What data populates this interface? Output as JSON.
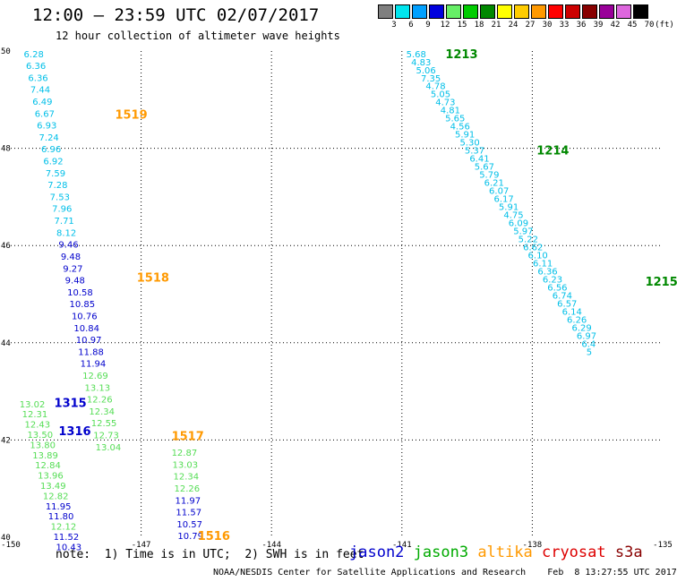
{
  "header": {
    "title": "12:00 – 23:59 UTC 02/07/2017",
    "subtitle": "12 hour collection of altimeter wave heights"
  },
  "legend": {
    "unit": "(ft)",
    "bins": [
      {
        "label": "3",
        "color": "#7f7f7f"
      },
      {
        "label": "6",
        "color": "#00e5ee"
      },
      {
        "label": "9",
        "color": "#00a0ff"
      },
      {
        "label": "12",
        "color": "#0000dd"
      },
      {
        "label": "15",
        "color": "#66ee66"
      },
      {
        "label": "18",
        "color": "#00cc00"
      },
      {
        "label": "21",
        "color": "#008800"
      },
      {
        "label": "24",
        "color": "#ffff00"
      },
      {
        "label": "27",
        "color": "#ffcc00"
      },
      {
        "label": "30",
        "color": "#ff9900"
      },
      {
        "label": "33",
        "color": "#ff0000"
      },
      {
        "label": "36",
        "color": "#cc0000"
      },
      {
        "label": "39",
        "color": "#880000"
      },
      {
        "label": "42",
        "color": "#990099"
      },
      {
        "label": "45",
        "color": "#dd66dd"
      },
      {
        "label": "70",
        "color": "#000000"
      }
    ]
  },
  "footer": {
    "note": "note:  1) Time is in UTC;  2) SWH is in feet",
    "satellites": [
      {
        "name": "jason2",
        "color": "#0000cc"
      },
      {
        "name": "jason3",
        "color": "#00aa00"
      },
      {
        "name": "altika",
        "color": "#ff9900"
      },
      {
        "name": "cryosat",
        "color": "#dd0000"
      },
      {
        "name": "s3a",
        "color": "#880000"
      }
    ],
    "credit": "NOAA/NESDIS Center for Satellite Applications and Research    Feb  8 13:27:55 UTC 2017"
  },
  "chart_data": {
    "type": "scatter",
    "xlim": [
      -150,
      -135
    ],
    "ylim": [
      40,
      50
    ],
    "x_ticks": [
      "-150",
      "-147",
      "-144",
      "-141",
      "-138",
      "-135"
    ],
    "y_ticks": [
      "40",
      "42",
      "44",
      "46",
      "48",
      "50"
    ],
    "grid": "dotted",
    "colors": {
      "c1": "#00bfe8",
      "c2": "#0000cc",
      "c3": "#55dd55",
      "c4": "#00aa00"
    },
    "passes": [
      {
        "label": "1519",
        "color": "#ff9900",
        "x": -147.6,
        "y": 48.68
      },
      {
        "label": "1518",
        "color": "#ff9900",
        "x": -147.1,
        "y": 45.33
      },
      {
        "label": "1517",
        "color": "#ff9900",
        "x": -146.3,
        "y": 42.07
      },
      {
        "label": "1516",
        "color": "#ff9900",
        "x": -145.7,
        "y": 40.02
      },
      {
        "label": "1315",
        "color": "#0000cc",
        "x": -149.0,
        "y": 42.75
      },
      {
        "label": "1316",
        "color": "#0000cc",
        "x": -148.9,
        "y": 42.17
      },
      {
        "label": "1213",
        "color": "#008800",
        "x": -140.0,
        "y": 49.93
      },
      {
        "label": "1214",
        "color": "#008800",
        "x": -137.9,
        "y": 47.95
      },
      {
        "label": "1215",
        "color": "#008800",
        "x": -135.4,
        "y": 45.25
      }
    ],
    "tracks": [
      {
        "x0": -149.7,
        "y0": 49.93,
        "dx": 0.05,
        "dy": -0.245,
        "values": [
          {
            "v": "6.28",
            "c": "c1"
          },
          {
            "v": "6.36",
            "c": "c1"
          },
          {
            "v": "6.36",
            "c": "c1"
          },
          {
            "v": "7.44",
            "c": "c1"
          },
          {
            "v": "6.49",
            "c": "c1"
          },
          {
            "v": "6.67",
            "c": "c1"
          },
          {
            "v": "6.93",
            "c": "c1"
          },
          {
            "v": "7.24",
            "c": "c1"
          },
          {
            "v": "6.96",
            "c": "c1"
          },
          {
            "v": "6.92",
            "c": "c1"
          },
          {
            "v": "7.59",
            "c": "c1"
          },
          {
            "v": "7.28",
            "c": "c1"
          },
          {
            "v": "7.53",
            "c": "c1"
          },
          {
            "v": "7.96",
            "c": "c1"
          },
          {
            "v": "7.71",
            "c": "c1"
          },
          {
            "v": "8.12",
            "c": "c1"
          },
          {
            "v": "9.46",
            "c": "c2"
          },
          {
            "v": "9.48",
            "c": "c2"
          },
          {
            "v": "9.27",
            "c": "c2"
          },
          {
            "v": "9.48",
            "c": "c2"
          },
          {
            "v": "10.58",
            "c": "c2"
          },
          {
            "v": "10.85",
            "c": "c2"
          },
          {
            "v": "10.76",
            "c": "c2"
          },
          {
            "v": "10.84",
            "c": "c2"
          },
          {
            "v": "10.97",
            "c": "c2"
          },
          {
            "v": "11.88",
            "c": "c2"
          },
          {
            "v": "11.94",
            "c": "c2"
          },
          {
            "v": "12.69",
            "c": "c3"
          },
          {
            "v": "13.13",
            "c": "c3"
          },
          {
            "v": "12.26",
            "c": "c3"
          },
          {
            "v": "12.34",
            "c": "c3"
          },
          {
            "v": "12.55",
            "c": "c3"
          },
          {
            "v": "12.73",
            "c": "c3"
          },
          {
            "v": "13.04",
            "c": "c3"
          }
        ]
      },
      {
        "x0": -146.3,
        "y0": 41.73,
        "dx": 0.02,
        "dy": -0.245,
        "values": [
          {
            "v": "12.87",
            "c": "c3"
          },
          {
            "v": "13.03",
            "c": "c3"
          },
          {
            "v": "12.34",
            "c": "c3"
          },
          {
            "v": "12.26",
            "c": "c3"
          },
          {
            "v": "11.97",
            "c": "c2"
          },
          {
            "v": "11.57",
            "c": "c2"
          },
          {
            "v": "10.57",
            "c": "c2"
          },
          {
            "v": "10.79",
            "c": "c2"
          }
        ]
      },
      {
        "x0": -149.8,
        "y0": 42.73,
        "dx": 0.06,
        "dy": -0.21,
        "values": [
          {
            "v": "13.02",
            "c": "c3"
          },
          {
            "v": "12.31",
            "c": "c3"
          },
          {
            "v": "12.43",
            "c": "c3"
          },
          {
            "v": "13.50",
            "c": "c3"
          },
          {
            "v": "13.80",
            "c": "c3"
          },
          {
            "v": "13.89",
            "c": "c3"
          },
          {
            "v": "12.84",
            "c": "c3"
          },
          {
            "v": "13.96",
            "c": "c3"
          },
          {
            "v": "13.49",
            "c": "c3"
          },
          {
            "v": "12.82",
            "c": "c3"
          },
          {
            "v": "11.95",
            "c": "c2"
          },
          {
            "v": "11.80",
            "c": "c2"
          },
          {
            "v": "12.12",
            "c": "c3"
          },
          {
            "v": "11.52",
            "c": "c2"
          },
          {
            "v": "10.43",
            "c": "c2"
          }
        ]
      },
      {
        "x0": -140.9,
        "y0": 49.93,
        "dx": 0.112,
        "dy": -0.1655,
        "values": [
          {
            "v": "5.68",
            "c": "c1"
          },
          {
            "v": "4.83",
            "c": "c1"
          },
          {
            "v": "5.06",
            "c": "c1"
          },
          {
            "v": "7.35",
            "c": "c1"
          },
          {
            "v": "4.78",
            "c": "c1"
          },
          {
            "v": "5.05",
            "c": "c1"
          },
          {
            "v": "4.73",
            "c": "c1"
          },
          {
            "v": "4.81",
            "c": "c1"
          },
          {
            "v": "5.65",
            "c": "c1"
          },
          {
            "v": "4.56",
            "c": "c1"
          },
          {
            "v": "5.91",
            "c": "c1"
          },
          {
            "v": "5.30",
            "c": "c1"
          },
          {
            "v": "5.37",
            "c": "c1"
          },
          {
            "v": "6.41",
            "c": "c1"
          },
          {
            "v": "5.67",
            "c": "c1"
          },
          {
            "v": "5.79",
            "c": "c1"
          },
          {
            "v": "6.21",
            "c": "c1"
          },
          {
            "v": "6.07",
            "c": "c1"
          },
          {
            "v": "6.17",
            "c": "c1"
          },
          {
            "v": "5.91",
            "c": "c1"
          },
          {
            "v": "4.75",
            "c": "c1"
          },
          {
            "v": "6.09",
            "c": "c1"
          },
          {
            "v": "5.97",
            "c": "c1"
          },
          {
            "v": "5.22",
            "c": "c1"
          },
          {
            "v": "6.62",
            "c": "c1"
          },
          {
            "v": "6.10",
            "c": "c1"
          },
          {
            "v": "6.11",
            "c": "c1"
          },
          {
            "v": "6.36",
            "c": "c1"
          },
          {
            "v": "6.23",
            "c": "c1"
          },
          {
            "v": "6.56",
            "c": "c1"
          },
          {
            "v": "6.74",
            "c": "c1"
          },
          {
            "v": "6.57",
            "c": "c1"
          },
          {
            "v": "6.14",
            "c": "c1"
          },
          {
            "v": "6.26",
            "c": "c1"
          },
          {
            "v": "6.29",
            "c": "c1"
          },
          {
            "v": "6.97",
            "c": "c1"
          },
          {
            "v": "6.4",
            "c": "c1"
          },
          {
            "v": "5",
            "c": "c1"
          }
        ]
      }
    ]
  }
}
